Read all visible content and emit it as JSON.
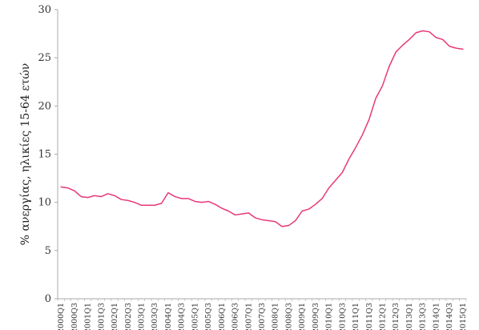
{
  "chart_data": {
    "type": "line",
    "title": "",
    "xlabel": "",
    "ylabel": "% ανεργίας, ηλικίες 15-64 ετών",
    "ylim": [
      0,
      30
    ],
    "yticks": [
      0,
      5,
      10,
      15,
      20,
      25,
      30
    ],
    "grid": false,
    "legend": "none",
    "line_color": "#e8387a",
    "axis_color": "#aaaaaa",
    "x": [
      "2000Q1",
      "2000Q2",
      "2000Q3",
      "2000Q4",
      "2001Q1",
      "2001Q2",
      "2001Q3",
      "2001Q4",
      "2002Q1",
      "2002Q2",
      "2002Q3",
      "2002Q4",
      "2003Q1",
      "2003Q2",
      "2003Q3",
      "2003Q4",
      "2004Q1",
      "2004Q2",
      "2004Q3",
      "2004Q4",
      "2005Q1",
      "2005Q2",
      "2005Q3",
      "2005Q4",
      "2006Q1",
      "2006Q2",
      "2006Q3",
      "2006Q4",
      "2007Q1",
      "2007Q2",
      "2007Q3",
      "2007Q4",
      "2008Q1",
      "2008Q2",
      "2008Q3",
      "2008Q4",
      "2009Q1",
      "2009Q2",
      "2009Q3",
      "2009Q4",
      "2010Q1",
      "2010Q2",
      "2010Q3",
      "2010Q4",
      "2011Q1",
      "2011Q2",
      "2011Q3",
      "2011Q4",
      "2012Q1",
      "2012Q2",
      "2012Q3",
      "2012Q4",
      "2013Q1",
      "2013Q2",
      "2013Q3",
      "2013Q4",
      "2014Q1",
      "2014Q2",
      "2014Q3",
      "2014Q4",
      "2015Q1"
    ],
    "tick_labels": [
      "2000Q1",
      "2000Q3",
      "2001Q1",
      "2001Q3",
      "2002Q1",
      "2002Q3",
      "2003Q1",
      "2003Q3",
      "2004Q1",
      "2004Q3",
      "2005Q1",
      "2005Q3",
      "2006Q1",
      "2006Q3",
      "2007Q1",
      "2007Q3",
      "2008Q1",
      "2008Q3",
      "2009Q1",
      "2009Q3",
      "2010Q1",
      "2010Q3",
      "2011Q1",
      "2011Q3",
      "2012Q1",
      "2012Q3",
      "2013Q1",
      "2013Q3",
      "2014Q1",
      "2014Q3",
      "2015Q1"
    ],
    "series": [
      {
        "values": [
          11.6,
          11.5,
          11.2,
          10.6,
          10.5,
          10.7,
          10.6,
          10.9,
          10.7,
          10.3,
          10.2,
          10.0,
          9.7,
          9.7,
          9.7,
          9.9,
          11.0,
          10.6,
          10.4,
          10.4,
          10.1,
          10.0,
          10.1,
          9.8,
          9.4,
          9.1,
          8.7,
          8.8,
          8.9,
          8.4,
          8.2,
          8.1,
          8.0,
          7.5,
          7.6,
          8.1,
          9.1,
          9.3,
          9.8,
          10.4,
          11.5,
          12.3,
          13.1,
          14.5,
          15.7,
          17.0,
          18.6,
          20.8,
          22.1,
          24.1,
          25.6,
          26.3,
          26.9,
          27.6,
          27.8,
          27.7,
          27.1,
          26.9,
          26.2,
          26.0,
          25.9
        ]
      }
    ]
  }
}
